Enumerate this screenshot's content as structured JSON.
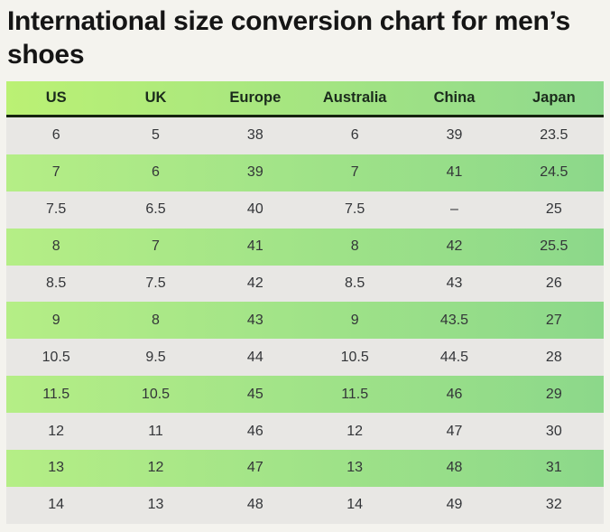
{
  "page": {
    "title": "International size conversion chart for men’s shoes"
  },
  "chart_data": {
    "type": "table",
    "title": "International size conversion chart for men’s shoes",
    "columns": [
      "US",
      "UK",
      "Europe",
      "Australia",
      "China",
      "Japan"
    ],
    "rows": [
      [
        "6",
        "5",
        "38",
        "6",
        "39",
        "23.5"
      ],
      [
        "7",
        "6",
        "39",
        "7",
        "41",
        "24.5"
      ],
      [
        "7.5",
        "6.5",
        "40",
        "7.5",
        "–",
        "25"
      ],
      [
        "8",
        "7",
        "41",
        "8",
        "42",
        "25.5"
      ],
      [
        "8.5",
        "7.5",
        "42",
        "8.5",
        "43",
        "26"
      ],
      [
        "9",
        "8",
        "43",
        "9",
        "43.5",
        "27"
      ],
      [
        "10.5",
        "9.5",
        "44",
        "10.5",
        "44.5",
        "28"
      ],
      [
        "11.5",
        "10.5",
        "45",
        "11.5",
        "46",
        "29"
      ],
      [
        "12",
        "11",
        "46",
        "12",
        "47",
        "30"
      ],
      [
        "13",
        "12",
        "47",
        "13",
        "48",
        "31"
      ],
      [
        "14",
        "13",
        "48",
        "14",
        "49",
        "32"
      ]
    ],
    "layout": {
      "row_striping": "odd rows gray, even rows green gradient",
      "grid": false,
      "alignment": "center"
    },
    "colors": {
      "page_bg": "#f4f3ee",
      "header_gradient_start": "#bbf174",
      "header_gradient_end": "#8fd98e",
      "row_gradient_start": "#b5ee86",
      "row_gradient_end": "#8cd88a",
      "row_gray": "#e8e7e4",
      "header_underline": "#16240f",
      "title_color": "#151515",
      "header_text": "#1b2b1c",
      "cell_text": "#333538"
    }
  }
}
